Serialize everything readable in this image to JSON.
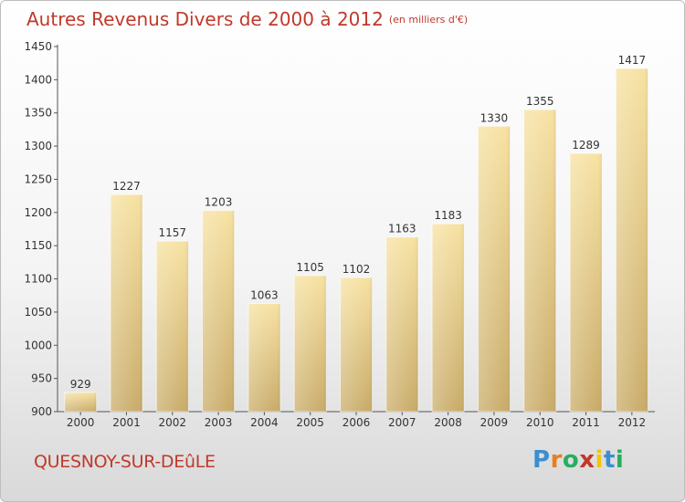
{
  "header": {
    "title": "Autres Revenus Divers de 2000 à 2012",
    "unit": "(en milliers d'€)"
  },
  "footer": {
    "city": "QUESNOY-SUR-DEûLE",
    "logo_letters": [
      {
        "ch": "P",
        "color": "#3b8fd0"
      },
      {
        "ch": "r",
        "color": "#e67e22"
      },
      {
        "ch": "o",
        "color": "#27ae60"
      },
      {
        "ch": "x",
        "color": "#c0392b"
      },
      {
        "ch": "i",
        "color": "#f1c40f"
      },
      {
        "ch": "t",
        "color": "#3b8fd0"
      },
      {
        "ch": "i",
        "color": "#27ae60"
      }
    ]
  },
  "chart_data": {
    "type": "bar",
    "title": "Autres Revenus Divers de 2000 à 2012",
    "categories": [
      "2000",
      "2001",
      "2002",
      "2003",
      "2004",
      "2005",
      "2006",
      "2007",
      "2008",
      "2009",
      "2010",
      "2011",
      "2012"
    ],
    "values": [
      929,
      1227,
      1157,
      1203,
      1063,
      1105,
      1102,
      1163,
      1183,
      1330,
      1355,
      1289,
      1417
    ],
    "ylim": [
      900,
      1450
    ],
    "yticks": [
      900,
      950,
      1000,
      1050,
      1100,
      1150,
      1200,
      1250,
      1300,
      1350,
      1400,
      1450
    ],
    "grid": false,
    "bar_color_top": "#f7e2a2",
    "bar_color_bottom": "#c9ac6a"
  }
}
